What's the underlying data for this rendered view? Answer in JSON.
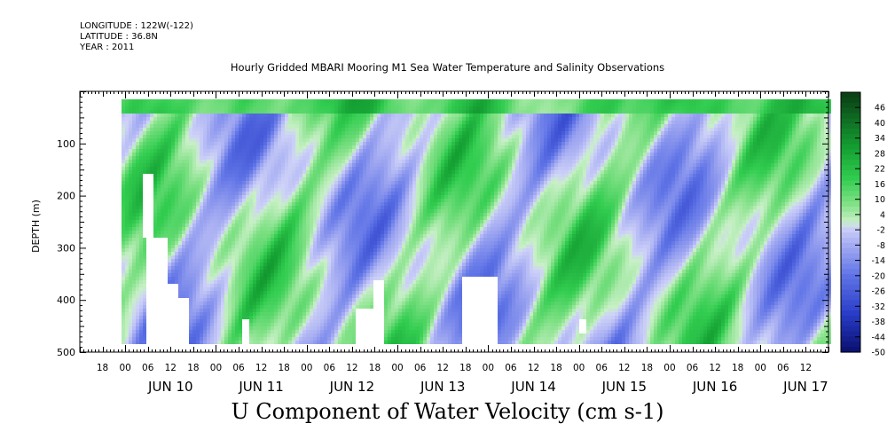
{
  "header": {
    "longitude": "LONGITUDE : 122W(-122)",
    "latitude": "LATITUDE : 36.8N",
    "year": "YEAR : 2011"
  },
  "chart_data": {
    "type": "heatmap",
    "title": "Hourly Gridded MBARI Mooring M1 Sea Water Temperature and Salinity Observations",
    "variable_title": "U Component of Water Velocity (cm s-1)",
    "ylabel": "DEPTH (m)",
    "ylim": [
      500,
      0
    ],
    "yticks": [
      100,
      200,
      300,
      400,
      500
    ],
    "xlabel": "",
    "x_start": "2011-06-09T12:00",
    "x_end": "2011-06-17T18:00",
    "data_start": "2011-06-09T23:00",
    "data_end": "2011-06-17T18:00",
    "data_depth_range": [
      15,
      485
    ],
    "x_hour_ticks": [
      "18",
      "00",
      "06",
      "12",
      "18",
      "00",
      "06",
      "12",
      "18",
      "00",
      "06",
      "12",
      "18",
      "00",
      "06",
      "12",
      "18",
      "00",
      "06",
      "12",
      "18",
      "00",
      "06",
      "12",
      "18",
      "00",
      "06",
      "12",
      "18",
      "00",
      "06",
      "12"
    ],
    "x_day_labels": [
      "JUN 10",
      "JUN 11",
      "JUN 12",
      "JUN 13",
      "JUN 14",
      "JUN 15",
      "JUN 16",
      "JUN 17"
    ],
    "colorbar_levels": [
      "46",
      "40",
      "34",
      "28",
      "22",
      "16",
      "10",
      "4",
      "-2",
      "-8",
      "-14",
      "-20",
      "-26",
      "-32",
      "-38",
      "-44",
      "-50"
    ],
    "colorbar_range": [
      -50,
      52
    ],
    "colors": {
      "positive_strong": "#0b3d14",
      "positive_mid": "#18b23c",
      "positive_light": "#b6eeb3",
      "negative_light": "#c9cdf6",
      "negative_mid": "#6a78e2",
      "negative_strong": "#0a0f6e"
    }
  }
}
